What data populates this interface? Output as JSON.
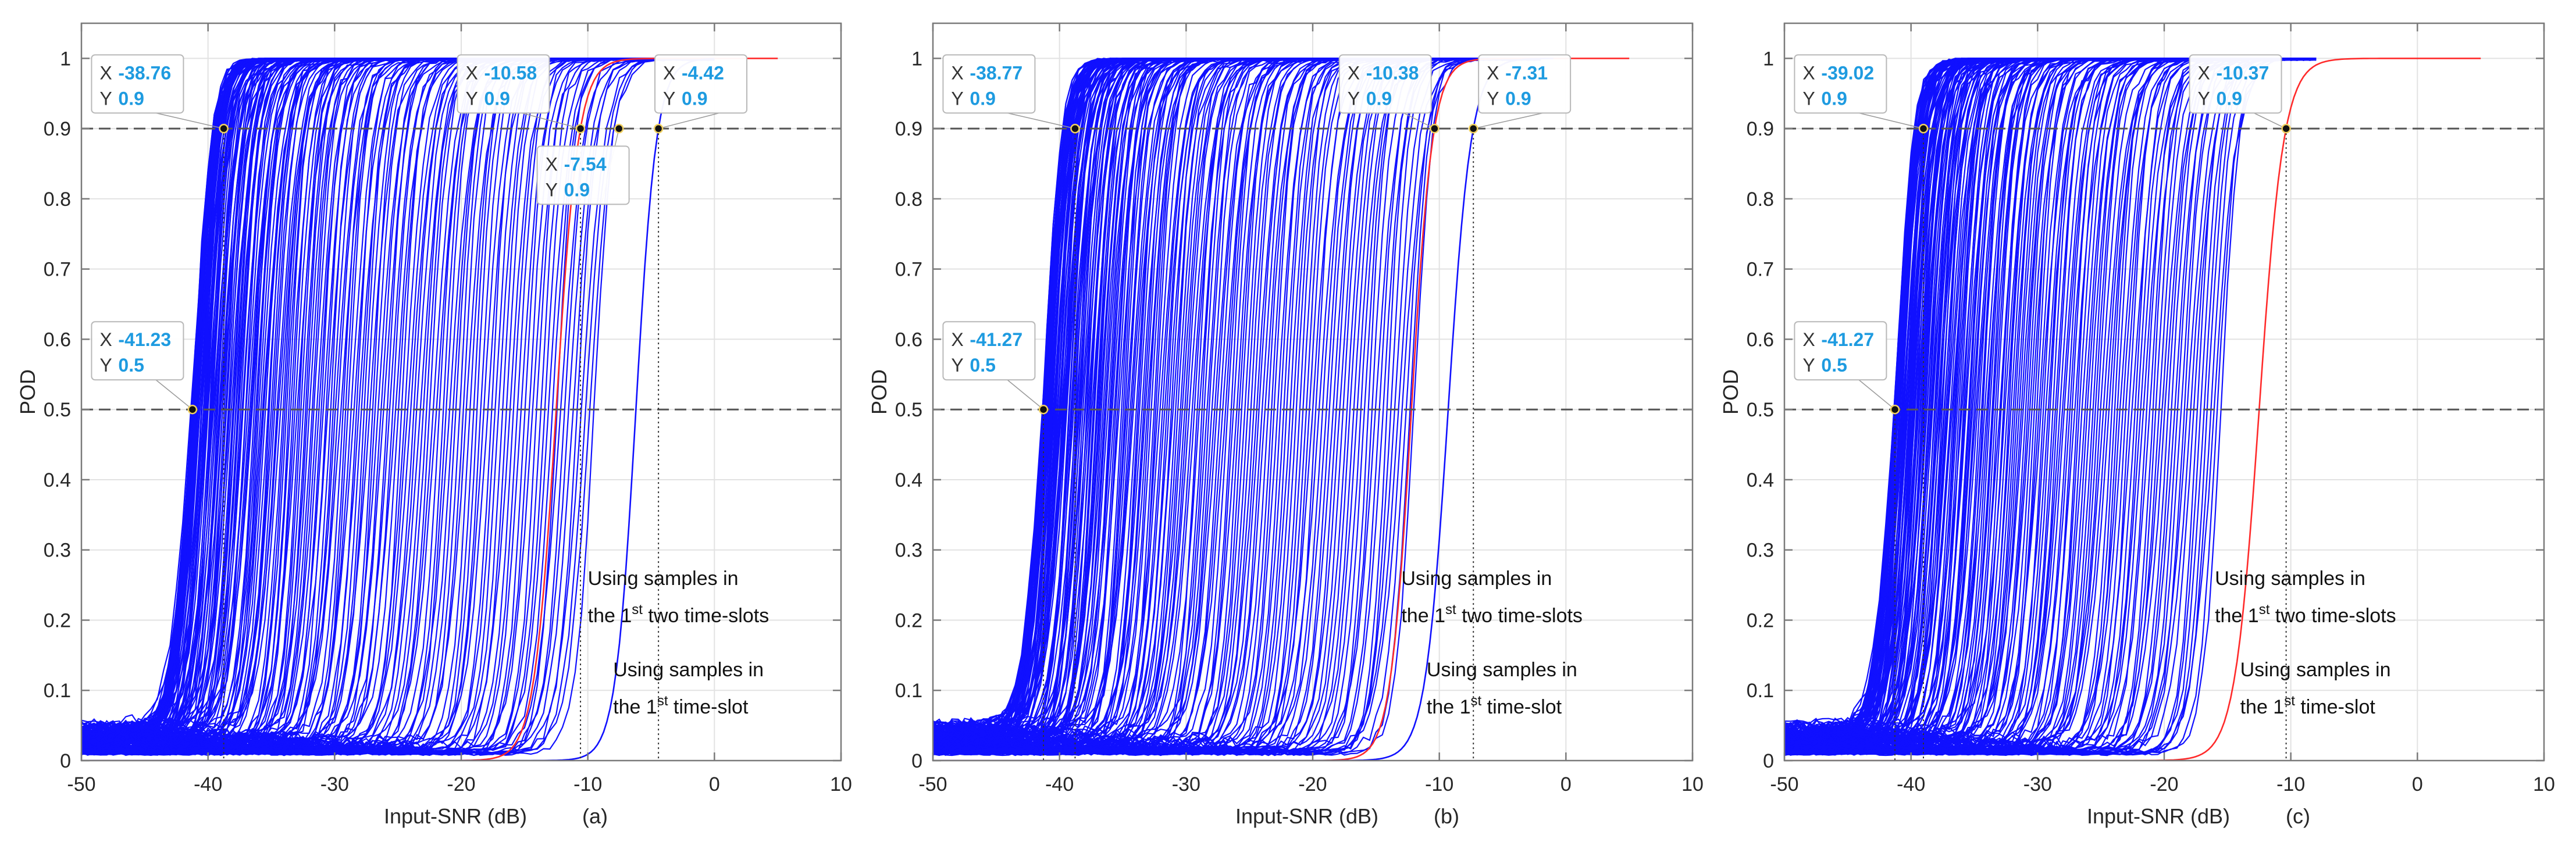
{
  "figure": {
    "style": {
      "curve_color": "#1010ff",
      "highlight_color": "#ff2a2a",
      "datatip_value_color": "#1e9be0",
      "grid_color": "#e2e2e2",
      "axis_color": "#7a7a7a",
      "reference_line_color": "#555555"
    }
  },
  "chart_data": [
    {
      "type": "line",
      "panel_label": "(a)",
      "xlabel": "Input-SNR (dB)",
      "ylabel": "POD",
      "xlim": [
        -50,
        10
      ],
      "ylim": [
        0,
        1.05
      ],
      "xticks": [
        -50,
        -40,
        -30,
        -20,
        -10,
        0,
        10
      ],
      "yticks": [
        0,
        0.1,
        0.2,
        0.3,
        0.4,
        0.5,
        0.6,
        0.7,
        0.8,
        0.9,
        1
      ],
      "grid": true,
      "reference_lines_y": [
        0.9,
        0.5
      ],
      "curve_family": {
        "count_approx": 200,
        "pod50_range_db": [
          -41.23,
          -9.5
        ],
        "step_width_db": 3.5,
        "end_snr_db": 0
      },
      "series": [
        {
          "name": "Using samples in the 1st two time-slots",
          "pod50_db": -12.5,
          "pod90_db": -10.58,
          "end_snr_db": 5
        },
        {
          "name": "Using samples in the 1st time-slot",
          "pod50_db": -6.2,
          "pod90_db": -4.42,
          "end_snr_db": 0
        }
      ],
      "annotations": [
        {
          "lines": [
            {
              "prefix": "Using samples in",
              "sup": "",
              "suffix": ""
            },
            {
              "prefix": "the 1",
              "sup": "st",
              "suffix": " two time-slots"
            }
          ],
          "x": -10,
          "y": 0.25
        },
        {
          "lines": [
            {
              "prefix": "Using samples in",
              "sup": "",
              "suffix": ""
            },
            {
              "prefix": "the 1",
              "sup": "st",
              "suffix": " time-slot"
            }
          ],
          "x": -8,
          "y": 0.12
        }
      ],
      "datatips": [
        {
          "x_text": "-38.76",
          "y_text": "0.9",
          "x": -38.76,
          "y": 0.9,
          "box_x": -49.2,
          "box_y": 1.005,
          "drop_line": true
        },
        {
          "x_text": "-10.58",
          "y_text": "0.9",
          "x": -10.58,
          "y": 0.9,
          "box_x": -20.3,
          "box_y": 1.005,
          "drop_line": true
        },
        {
          "x_text": "-4.42",
          "y_text": "0.9",
          "x": -4.42,
          "y": 0.9,
          "box_x": -4.7,
          "box_y": 1.005,
          "drop_line": true
        },
        {
          "x_text": "-7.54",
          "y_text": "0.9",
          "x": -7.54,
          "y": 0.9,
          "box_x": -14.0,
          "box_y": 0.875,
          "drop_line": false
        },
        {
          "x_text": "-41.23",
          "y_text": "0.5",
          "x": -41.23,
          "y": 0.5,
          "box_x": -49.2,
          "box_y": 0.625,
          "drop_line": false
        }
      ]
    },
    {
      "type": "line",
      "panel_label": "(b)",
      "xlabel": "Input-SNR (dB)",
      "ylabel": "POD",
      "xlim": [
        -50,
        10
      ],
      "ylim": [
        0,
        1.05
      ],
      "xticks": [
        -50,
        -40,
        -30,
        -20,
        -10,
        0,
        10
      ],
      "yticks": [
        0,
        0.1,
        0.2,
        0.3,
        0.4,
        0.5,
        0.6,
        0.7,
        0.8,
        0.9,
        1
      ],
      "grid": true,
      "reference_lines_y": [
        0.9,
        0.5
      ],
      "curve_family": {
        "count_approx": 200,
        "pod50_range_db": [
          -41.27,
          -12.0
        ],
        "step_width_db": 3.5,
        "end_snr_db": -2
      },
      "series": [
        {
          "name": "Using samples in the 1st two time-slots",
          "pod50_db": -12.2,
          "pod90_db": -10.38,
          "end_snr_db": 5
        },
        {
          "name": "Using samples in the 1st time-slot",
          "pod50_db": -9.3,
          "pod90_db": -7.31,
          "end_snr_db": -1
        }
      ],
      "annotations": [
        {
          "lines": [
            {
              "prefix": "Using samples in",
              "sup": "",
              "suffix": ""
            },
            {
              "prefix": "the 1",
              "sup": "st",
              "suffix": " two time-slots"
            }
          ],
          "x": -13,
          "y": 0.25
        },
        {
          "lines": [
            {
              "prefix": "Using samples in",
              "sup": "",
              "suffix": ""
            },
            {
              "prefix": "the 1",
              "sup": "st",
              "suffix": " time-slot"
            }
          ],
          "x": -11,
          "y": 0.12
        }
      ],
      "datatips": [
        {
          "x_text": "-38.77",
          "y_text": "0.9",
          "x": -38.77,
          "y": 0.9,
          "box_x": -49.2,
          "box_y": 1.005,
          "drop_line": true
        },
        {
          "x_text": "-10.38",
          "y_text": "0.9",
          "x": -10.38,
          "y": 0.9,
          "box_x": -17.9,
          "box_y": 1.005,
          "drop_line": false
        },
        {
          "x_text": "-7.31",
          "y_text": "0.9",
          "x": -7.31,
          "y": 0.9,
          "box_x": -6.9,
          "box_y": 1.005,
          "drop_line": true
        },
        {
          "x_text": "-41.27",
          "y_text": "0.5",
          "x": -41.27,
          "y": 0.5,
          "box_x": -49.2,
          "box_y": 0.625,
          "drop_line": true
        }
      ]
    },
    {
      "type": "line",
      "panel_label": "(c)",
      "xlabel": "Input-SNR (dB)",
      "ylabel": "POD",
      "xlim": [
        -50,
        10
      ],
      "ylim": [
        0,
        1.05
      ],
      "xticks": [
        -50,
        -40,
        -30,
        -20,
        -10,
        0,
        10
      ],
      "yticks": [
        0,
        0.1,
        0.2,
        0.3,
        0.4,
        0.5,
        0.6,
        0.7,
        0.8,
        0.9,
        1
      ],
      "grid": true,
      "reference_lines_y": [
        0.9,
        0.5
      ],
      "curve_family": {
        "count_approx": 200,
        "pod50_range_db": [
          -41.27,
          -15.5
        ],
        "step_width_db": 3.5,
        "end_snr_db": -8
      },
      "series": [
        {
          "name": "Using samples in the 1st two time-slots",
          "pod50_db": -12.5,
          "pod90_db": -10.37,
          "end_snr_db": 5
        }
      ],
      "annotations": [
        {
          "lines": [
            {
              "prefix": "Using samples in",
              "sup": "",
              "suffix": ""
            },
            {
              "prefix": "the 1",
              "sup": "st",
              "suffix": " two time-slots"
            }
          ],
          "x": -16,
          "y": 0.25
        },
        {
          "lines": [
            {
              "prefix": "Using samples in",
              "sup": "",
              "suffix": ""
            },
            {
              "prefix": "the 1",
              "sup": "st",
              "suffix": " time-slot"
            }
          ],
          "x": -14,
          "y": 0.12
        }
      ],
      "datatips": [
        {
          "x_text": "-39.02",
          "y_text": "0.9",
          "x": -39.02,
          "y": 0.9,
          "box_x": -49.2,
          "box_y": 1.005,
          "drop_line": true
        },
        {
          "x_text": "-10.37",
          "y_text": "0.9",
          "x": -10.37,
          "y": 0.9,
          "box_x": -18.0,
          "box_y": 1.005,
          "drop_line": true
        },
        {
          "x_text": "-41.27",
          "y_text": "0.5",
          "x": -41.27,
          "y": 0.5,
          "box_x": -49.2,
          "box_y": 0.625,
          "drop_line": true
        }
      ]
    }
  ]
}
